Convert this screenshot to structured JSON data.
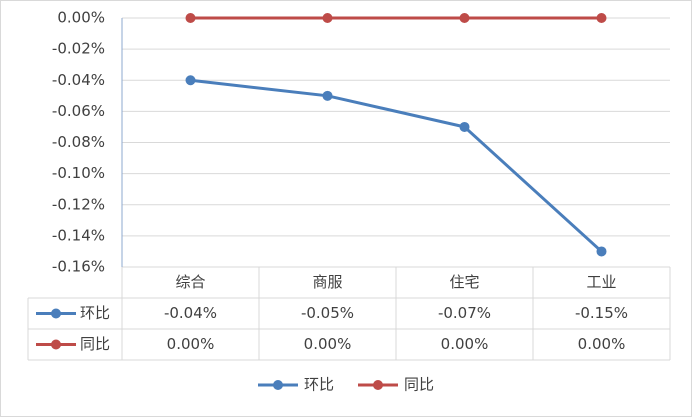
{
  "chart_data": {
    "type": "line",
    "categories": [
      "综合",
      "商服",
      "住宅",
      "工业"
    ],
    "series": [
      {
        "name": "环比",
        "color": "#4a7ebb",
        "values": [
          -0.04,
          -0.05,
          -0.07,
          -0.15
        ],
        "value_labels": [
          "-0.04%",
          "-0.05%",
          "-0.07%",
          "-0.15%"
        ]
      },
      {
        "name": "同比",
        "color": "#be4b48",
        "values": [
          0,
          0,
          0,
          0
        ],
        "value_labels": [
          "0.00%",
          "0.00%",
          "0.00%",
          "0.00%"
        ]
      }
    ],
    "ylim": [
      -0.16,
      0
    ],
    "yticks": [
      {
        "value": 0,
        "label": "0.00%"
      },
      {
        "value": -0.02,
        "label": "-0.02%"
      },
      {
        "value": -0.04,
        "label": "-0.04%"
      },
      {
        "value": -0.06,
        "label": "-0.06%"
      },
      {
        "value": -0.08,
        "label": "-0.08%"
      },
      {
        "value": -0.1,
        "label": "-0.10%"
      },
      {
        "value": -0.12,
        "label": "-0.12%"
      },
      {
        "value": -0.14,
        "label": "-0.14%"
      },
      {
        "value": -0.16,
        "label": "-0.16%"
      }
    ],
    "grid": true,
    "legend": "bottom"
  }
}
